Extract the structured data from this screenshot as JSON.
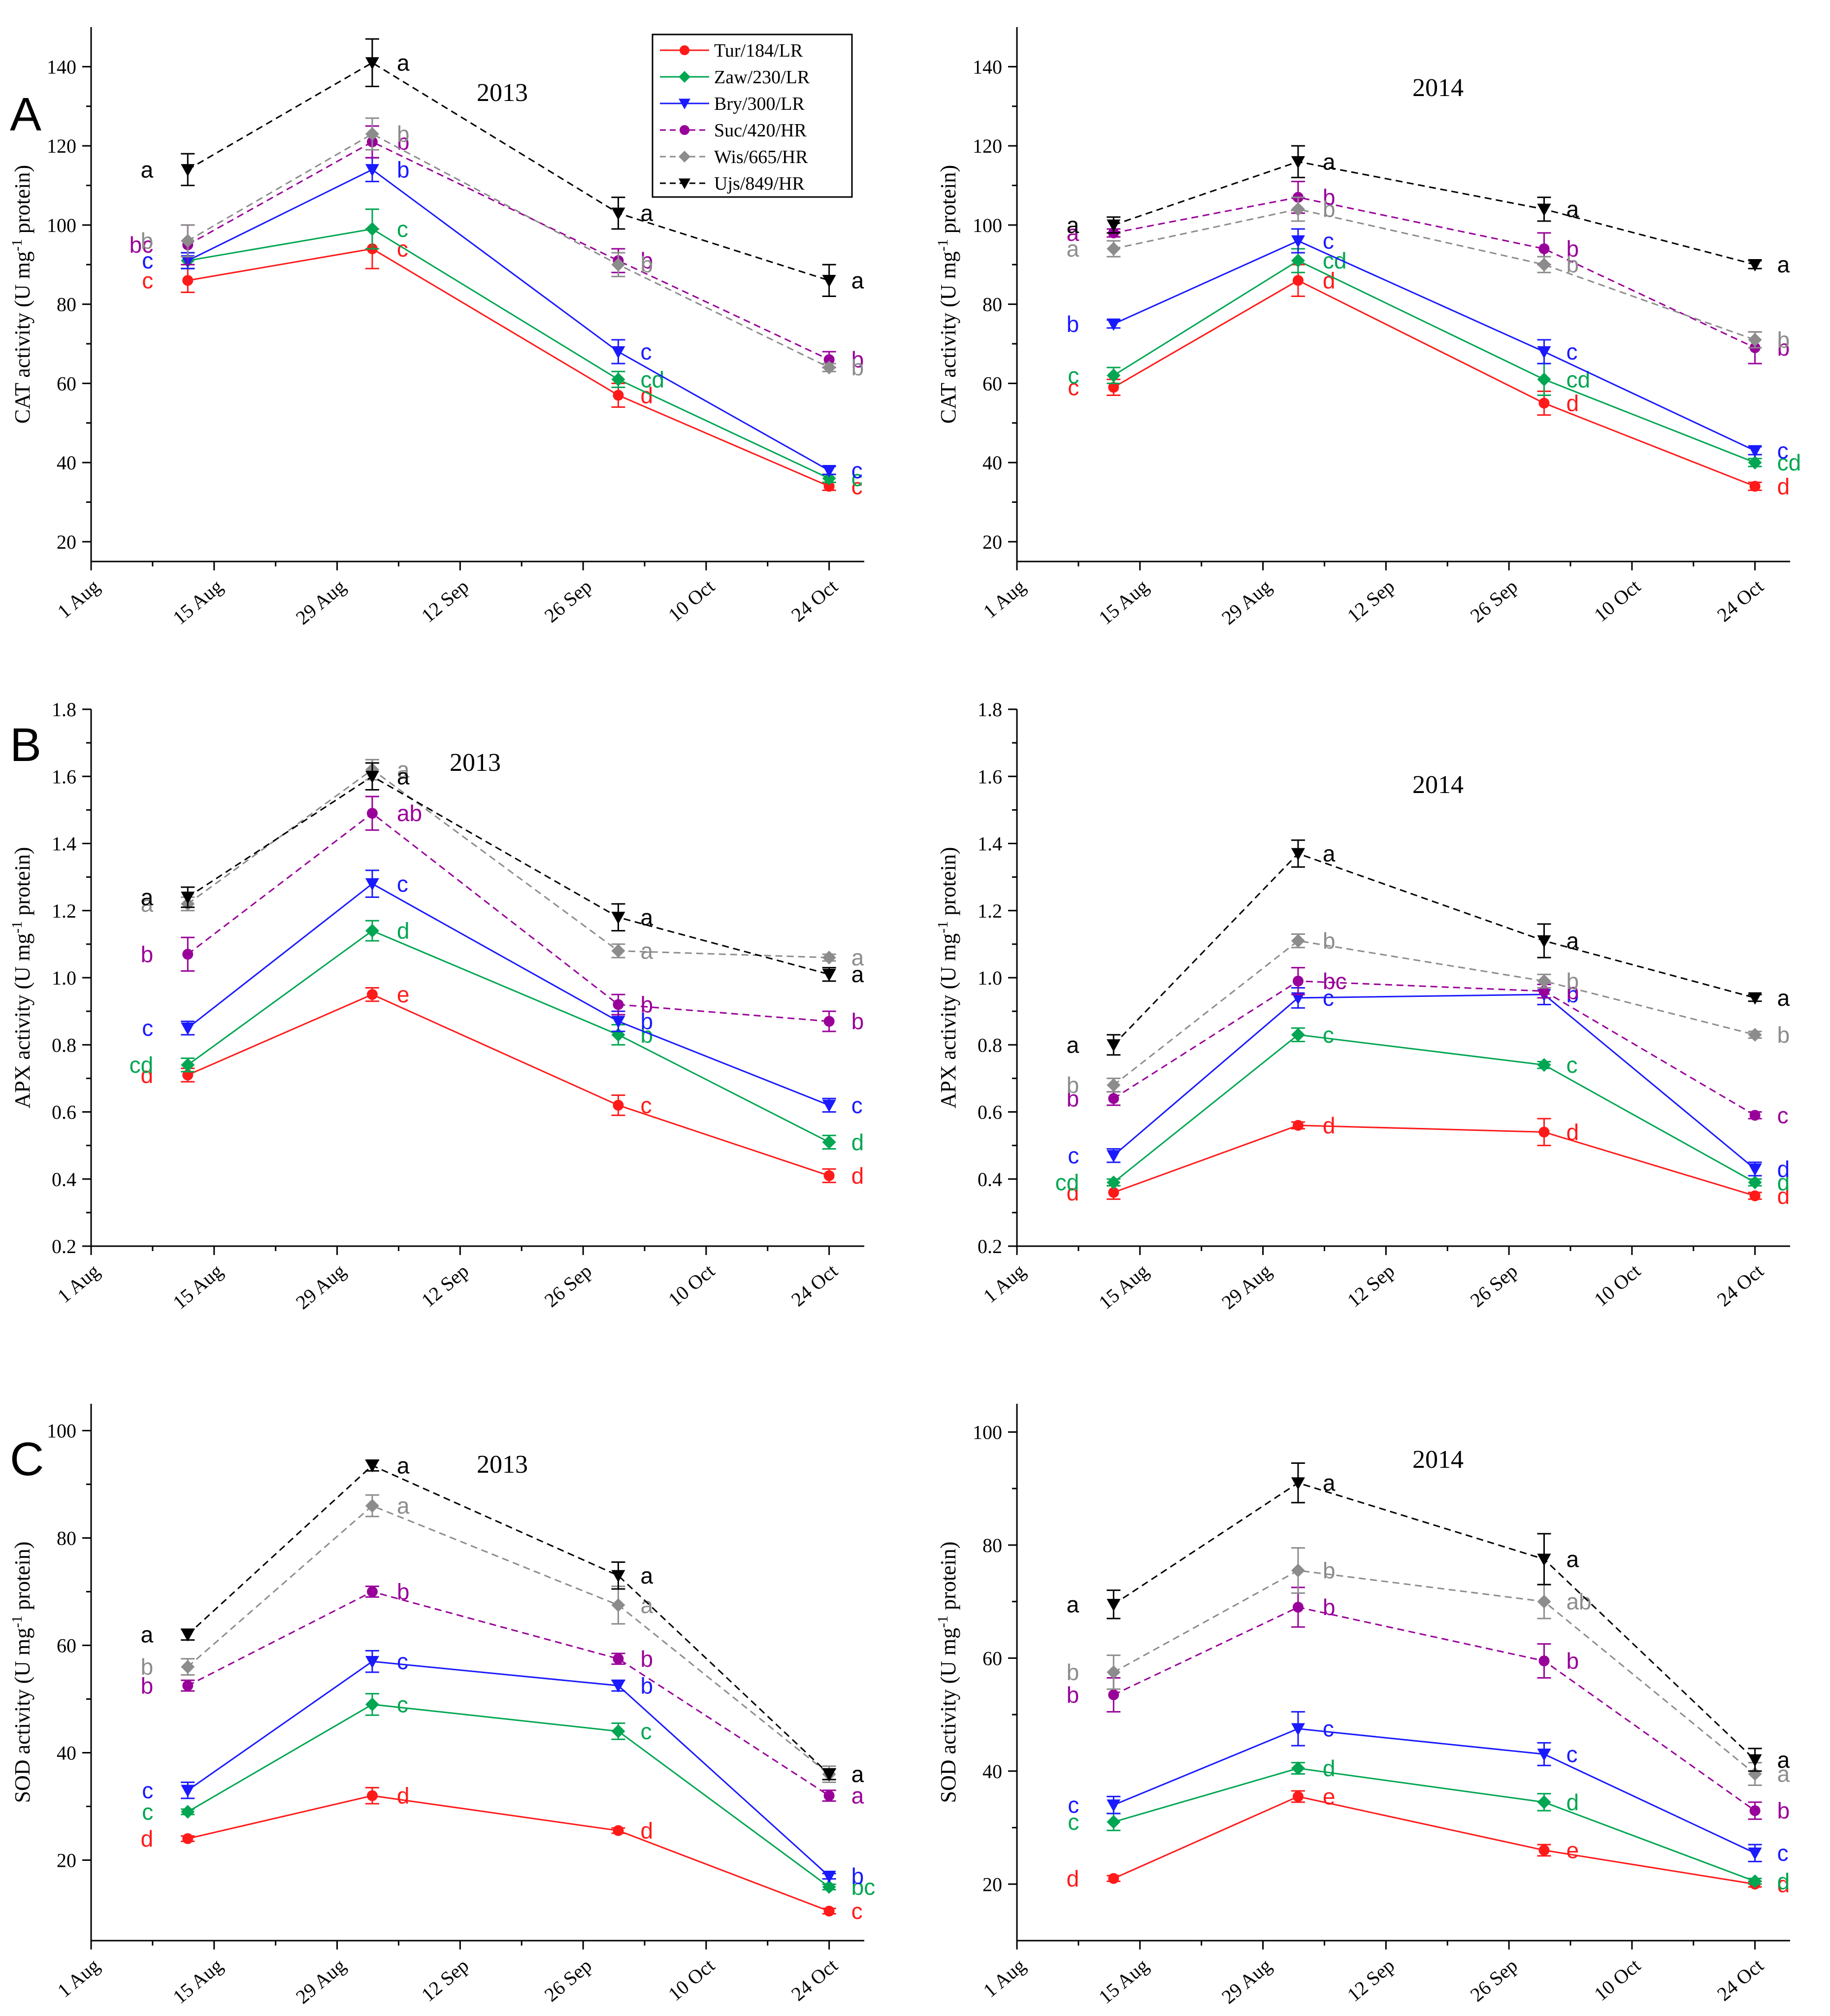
{
  "colors": {
    "Tur": "#ff1a1a",
    "Zaw": "#00a651",
    "Bry": "#1a1aff",
    "Suc": "#990099",
    "Wis": "#8c8c8c",
    "Ujs": "#000000"
  },
  "legend": [
    {
      "key": "Tur",
      "label": "Tur/184/LR",
      "marker": "circle",
      "dash": false
    },
    {
      "key": "Zaw",
      "label": "Zaw/230/LR",
      "marker": "diamond",
      "dash": false
    },
    {
      "key": "Bry",
      "label": "Bry/300/LR",
      "marker": "triangle-down",
      "dash": false
    },
    {
      "key": "Suc",
      "label": "Suc/420/HR",
      "marker": "circle",
      "dash": true
    },
    {
      "key": "Wis",
      "label": "Wis/665/HR",
      "marker": "diamond",
      "dash": true
    },
    {
      "key": "Ujs",
      "label": "Ujs/849/HR",
      "marker": "triangle-down",
      "dash": true
    }
  ],
  "chart_data": [
    {
      "id": "A-2013",
      "type": "line",
      "panel_letter": "A",
      "year_title": "2013",
      "ylabel": "CAT activity (U mg-1 protein)",
      "ylim": [
        15,
        150
      ],
      "yticks": [
        20,
        40,
        60,
        80,
        100,
        120,
        140
      ],
      "x_days": [
        11,
        32,
        60,
        84
      ],
      "xlim": [
        0,
        88
      ],
      "xtick_labels": [
        "1 Aug",
        "15 Aug",
        "29 Aug",
        "12 Sep",
        "26 Sep",
        "10 Oct",
        "24 Oct"
      ],
      "series": [
        {
          "name": "Tur/184/LR",
          "key": "Tur",
          "values": [
            86,
            94,
            57,
            34
          ],
          "err": [
            3,
            5,
            3,
            1
          ],
          "letters": [
            "c",
            "c",
            "d",
            "c"
          ]
        },
        {
          "name": "Zaw/230/LR",
          "key": "Zaw",
          "values": [
            91,
            99,
            61,
            36
          ],
          "err": [
            2,
            5,
            2,
            1
          ],
          "letters": [
            "c",
            "c",
            "cd",
            "c"
          ]
        },
        {
          "name": "Bry/300/LR",
          "key": "Bry",
          "values": [
            91,
            114,
            68,
            38
          ],
          "err": [
            2,
            3,
            3,
            1
          ],
          "letters": [
            "c",
            "b",
            "c",
            "c"
          ]
        },
        {
          "name": "Suc/420/HR",
          "key": "Suc",
          "values": [
            95,
            121,
            91,
            66
          ],
          "err": [
            5,
            4,
            3,
            2
          ],
          "letters": [
            "bc",
            "b",
            "b",
            "b"
          ]
        },
        {
          "name": "Wis/665/HR",
          "key": "Wis",
          "values": [
            96,
            123,
            90,
            64
          ],
          "err": [
            4,
            4,
            3,
            1
          ],
          "letters": [
            "b",
            "b",
            "b",
            "b"
          ]
        },
        {
          "name": "Ujs/849/HR",
          "key": "Ujs",
          "values": [
            114,
            141,
            103,
            86
          ],
          "err": [
            4,
            6,
            4,
            4
          ],
          "letters": [
            "a",
            "a",
            "a",
            "a"
          ]
        }
      ]
    },
    {
      "id": "A-2014",
      "type": "line",
      "panel_letter": "",
      "year_title": "2014",
      "ylabel": "CAT activity (U mg-1 protein)",
      "ylim": [
        15,
        150
      ],
      "yticks": [
        20,
        40,
        60,
        80,
        100,
        120,
        140
      ],
      "x_days": [
        11,
        32,
        60,
        84
      ],
      "xlim": [
        0,
        88
      ],
      "xtick_labels": [
        "1 Aug",
        "15 Aug",
        "29 Aug",
        "12 Sep",
        "26 Sep",
        "10 Oct",
        "24 Oct"
      ],
      "series": [
        {
          "name": "Tur/184/LR",
          "key": "Tur",
          "values": [
            59,
            86,
            55,
            34
          ],
          "err": [
            2,
            4,
            3,
            1
          ],
          "letters": [
            "c",
            "d",
            "d",
            "d"
          ]
        },
        {
          "name": "Zaw/230/LR",
          "key": "Zaw",
          "values": [
            62,
            91,
            61,
            40
          ],
          "err": [
            2,
            3,
            4,
            1
          ],
          "letters": [
            "c",
            "cd",
            "cd",
            "cd"
          ]
        },
        {
          "name": "Bry/300/LR",
          "key": "Bry",
          "values": [
            75,
            96,
            68,
            43
          ],
          "err": [
            1,
            3,
            3,
            1
          ],
          "letters": [
            "b",
            "c",
            "c",
            "c"
          ]
        },
        {
          "name": "Suc/420/HR",
          "key": "Suc",
          "values": [
            98,
            107,
            94,
            69
          ],
          "err": [
            1,
            4,
            4,
            4
          ],
          "letters": [
            "a",
            "b",
            "b",
            "b"
          ]
        },
        {
          "name": "Wis/665/HR",
          "key": "Wis",
          "values": [
            94,
            104,
            90,
            71
          ],
          "err": [
            2,
            3,
            2,
            2
          ],
          "letters": [
            "a",
            "b",
            "b",
            "b"
          ]
        },
        {
          "name": "Ujs/849/HR",
          "key": "Ujs",
          "values": [
            100,
            116,
            104,
            90
          ],
          "err": [
            2,
            4,
            3,
            1
          ],
          "letters": [
            "a",
            "a",
            "a",
            "a"
          ]
        }
      ]
    },
    {
      "id": "B-2013",
      "type": "line",
      "panel_letter": "B",
      "year_title": "2013",
      "ylabel": "APX activity (U mg-1 protein)",
      "ylim": [
        0.2,
        1.8
      ],
      "yticks": [
        0.2,
        0.4,
        0.6,
        0.8,
        1.0,
        1.2,
        1.4,
        1.6,
        1.8
      ],
      "x_days": [
        11,
        32,
        60,
        84
      ],
      "xlim": [
        0,
        88
      ],
      "xtick_labels": [
        "1 Aug",
        "15 Aug",
        "29 Aug",
        "12 Sep",
        "26 Sep",
        "10 Oct",
        "24 Oct"
      ],
      "series": [
        {
          "name": "Tur/184/LR",
          "key": "Tur",
          "values": [
            0.71,
            0.95,
            0.62,
            0.41
          ],
          "err": [
            0.02,
            0.02,
            0.03,
            0.02
          ],
          "letters": [
            "d",
            "e",
            "c",
            "d"
          ]
        },
        {
          "name": "Zaw/230/LR",
          "key": "Zaw",
          "values": [
            0.74,
            1.14,
            0.83,
            0.51
          ],
          "err": [
            0.02,
            0.03,
            0.03,
            0.02
          ],
          "letters": [
            "cd",
            "d",
            "b",
            "d"
          ]
        },
        {
          "name": "Bry/300/LR",
          "key": "Bry",
          "values": [
            0.85,
            1.28,
            0.87,
            0.62
          ],
          "err": [
            0.02,
            0.04,
            0.03,
            0.02
          ],
          "letters": [
            "c",
            "c",
            "b",
            "c"
          ]
        },
        {
          "name": "Suc/420/HR",
          "key": "Suc",
          "values": [
            1.07,
            1.49,
            0.92,
            0.87
          ],
          "err": [
            0.05,
            0.05,
            0.03,
            0.03
          ],
          "letters": [
            "b",
            "ab",
            "b",
            "b"
          ]
        },
        {
          "name": "Wis/665/HR",
          "key": "Wis",
          "values": [
            1.22,
            1.62,
            1.08,
            1.06
          ],
          "err": [
            0.02,
            0.03,
            0.02,
            0.01
          ],
          "letters": [
            "a",
            "a",
            "a",
            "a"
          ]
        },
        {
          "name": "Ujs/849/HR",
          "key": "Ujs",
          "values": [
            1.24,
            1.6,
            1.18,
            1.01
          ],
          "err": [
            0.03,
            0.04,
            0.04,
            0.02
          ],
          "letters": [
            "a",
            "a",
            "a",
            "a"
          ]
        }
      ]
    },
    {
      "id": "B-2014",
      "type": "line",
      "panel_letter": "",
      "year_title": "2014",
      "ylabel": "APX activity (U mg-1 protein)",
      "ylim": [
        0.2,
        1.8
      ],
      "yticks": [
        0.2,
        0.4,
        0.6,
        0.8,
        1.0,
        1.2,
        1.4,
        1.6,
        1.8
      ],
      "x_days": [
        11,
        32,
        60,
        84
      ],
      "xlim": [
        0,
        88
      ],
      "xtick_labels": [
        "1 Aug",
        "15 Aug",
        "29 Aug",
        "12 Sep",
        "26 Sep",
        "10 Oct",
        "24 Oct"
      ],
      "series": [
        {
          "name": "Tur/184/LR",
          "key": "Tur",
          "values": [
            0.36,
            0.56,
            0.54,
            0.35
          ],
          "err": [
            0.02,
            0.01,
            0.04,
            0.01
          ],
          "letters": [
            "d",
            "d",
            "d",
            "d"
          ]
        },
        {
          "name": "Zaw/230/LR",
          "key": "Zaw",
          "values": [
            0.39,
            0.83,
            0.74,
            0.39
          ],
          "err": [
            0.01,
            0.02,
            0.01,
            0.01
          ],
          "letters": [
            "cd",
            "c",
            "c",
            "d"
          ]
        },
        {
          "name": "Bry/300/LR",
          "key": "Bry",
          "values": [
            0.47,
            0.94,
            0.95,
            0.43
          ],
          "err": [
            0.02,
            0.03,
            0.03,
            0.02
          ],
          "letters": [
            "c",
            "c",
            "b",
            "d"
          ]
        },
        {
          "name": "Suc/420/HR",
          "key": "Suc",
          "values": [
            0.64,
            0.99,
            0.96,
            0.59
          ],
          "err": [
            0.02,
            0.04,
            0.02,
            0.01
          ],
          "letters": [
            "b",
            "bc",
            "b",
            "c"
          ]
        },
        {
          "name": "Wis/665/HR",
          "key": "Wis",
          "values": [
            0.68,
            1.11,
            0.99,
            0.83
          ],
          "err": [
            0.02,
            0.02,
            0.02,
            0.01
          ],
          "letters": [
            "b",
            "b",
            "b",
            "b"
          ]
        },
        {
          "name": "Ujs/849/HR",
          "key": "Ujs",
          "values": [
            0.8,
            1.37,
            1.11,
            0.94
          ],
          "err": [
            0.03,
            0.04,
            0.05,
            0.01
          ],
          "letters": [
            "a",
            "a",
            "a",
            "a"
          ]
        }
      ]
    },
    {
      "id": "C-2013",
      "type": "line",
      "panel_letter": "C",
      "year_title": "2013",
      "ylabel": "SOD activity (U mg-1 protein)",
      "ylim": [
        5,
        105
      ],
      "yticks": [
        20,
        40,
        60,
        80,
        100
      ],
      "x_days": [
        11,
        32,
        60,
        84
      ],
      "xlim": [
        0,
        88
      ],
      "xtick_labels": [
        "1 Aug",
        "15 Aug",
        "29 Aug",
        "12 Sep",
        "26 Sep",
        "10 Oct",
        "24 Oct"
      ],
      "series": [
        {
          "name": "Tur/184/LR",
          "key": "Tur",
          "values": [
            24,
            32,
            25.5,
            10.5
          ],
          "err": [
            0.5,
            1.5,
            0.5,
            0.5
          ],
          "letters": [
            "d",
            "d",
            "d",
            "c"
          ]
        },
        {
          "name": "Zaw/230/LR",
          "key": "Zaw",
          "values": [
            29,
            49,
            44,
            15
          ],
          "err": [
            0.5,
            2,
            1.5,
            0.5
          ],
          "letters": [
            "c",
            "c",
            "c",
            "bc"
          ]
        },
        {
          "name": "Bry/300/LR",
          "key": "Bry",
          "values": [
            33,
            57,
            52.5,
            17
          ],
          "err": [
            1.5,
            2,
            1,
            0.5
          ],
          "letters": [
            "c",
            "c",
            "b",
            "b"
          ]
        },
        {
          "name": "Suc/420/HR",
          "key": "Suc",
          "values": [
            52.5,
            70,
            57.5,
            32
          ],
          "err": [
            1,
            1,
            1,
            1
          ],
          "letters": [
            "b",
            "b",
            "b",
            "a"
          ]
        },
        {
          "name": "Wis/665/HR",
          "key": "Wis",
          "values": [
            56,
            86,
            67.5,
            36
          ],
          "err": [
            1.5,
            2,
            3.5,
            1.5
          ],
          "letters": [
            "b",
            "a",
            "a",
            "a"
          ]
        },
        {
          "name": "Ujs/849/HR",
          "key": "Ujs",
          "values": [
            62,
            93.5,
            73,
            36
          ],
          "err": [
            1,
            1,
            2.5,
            1
          ],
          "letters": [
            "a",
            "a",
            "a",
            "a"
          ]
        }
      ]
    },
    {
      "id": "C-2014",
      "type": "line",
      "panel_letter": "",
      "year_title": "2014",
      "ylabel": "SOD activity (U mg-1 protein)",
      "ylim": [
        10,
        105
      ],
      "yticks": [
        20,
        40,
        60,
        80,
        100
      ],
      "x_days": [
        11,
        32,
        60,
        84
      ],
      "xlim": [
        0,
        88
      ],
      "xtick_labels": [
        "1 Aug",
        "15 Aug",
        "29 Aug",
        "12 Sep",
        "26 Sep",
        "10 Oct",
        "24 Oct"
      ],
      "series": [
        {
          "name": "Tur/184/LR",
          "key": "Tur",
          "values": [
            21,
            35.5,
            26,
            20
          ],
          "err": [
            0.5,
            1,
            1,
            0.5
          ],
          "letters": [
            "d",
            "e",
            "e",
            "d"
          ]
        },
        {
          "name": "Zaw/230/LR",
          "key": "Zaw",
          "values": [
            31,
            40.5,
            34.5,
            20.5
          ],
          "err": [
            1.5,
            1,
            1.5,
            0.5
          ],
          "letters": [
            "c",
            "d",
            "d",
            "d"
          ]
        },
        {
          "name": "Bry/300/LR",
          "key": "Bry",
          "values": [
            34,
            47.5,
            43,
            25.5
          ],
          "err": [
            1.5,
            3,
            2,
            1.5
          ],
          "letters": [
            "c",
            "c",
            "c",
            "c"
          ]
        },
        {
          "name": "Suc/420/HR",
          "key": "Suc",
          "values": [
            53.5,
            69,
            59.5,
            33
          ],
          "err": [
            3,
            3.5,
            3,
            1.5
          ],
          "letters": [
            "b",
            "b",
            "b",
            "b"
          ]
        },
        {
          "name": "Wis/665/HR",
          "key": "Wis",
          "values": [
            57.5,
            75.5,
            70,
            39.5
          ],
          "err": [
            3,
            4,
            3,
            2
          ],
          "letters": [
            "b",
            "b",
            "ab",
            "a"
          ]
        },
        {
          "name": "Ujs/849/HR",
          "key": "Ujs",
          "values": [
            69.5,
            91,
            77.5,
            42
          ],
          "err": [
            2.5,
            3.5,
            4.5,
            2
          ],
          "letters": [
            "a",
            "a",
            "a",
            "a"
          ]
        }
      ]
    }
  ]
}
